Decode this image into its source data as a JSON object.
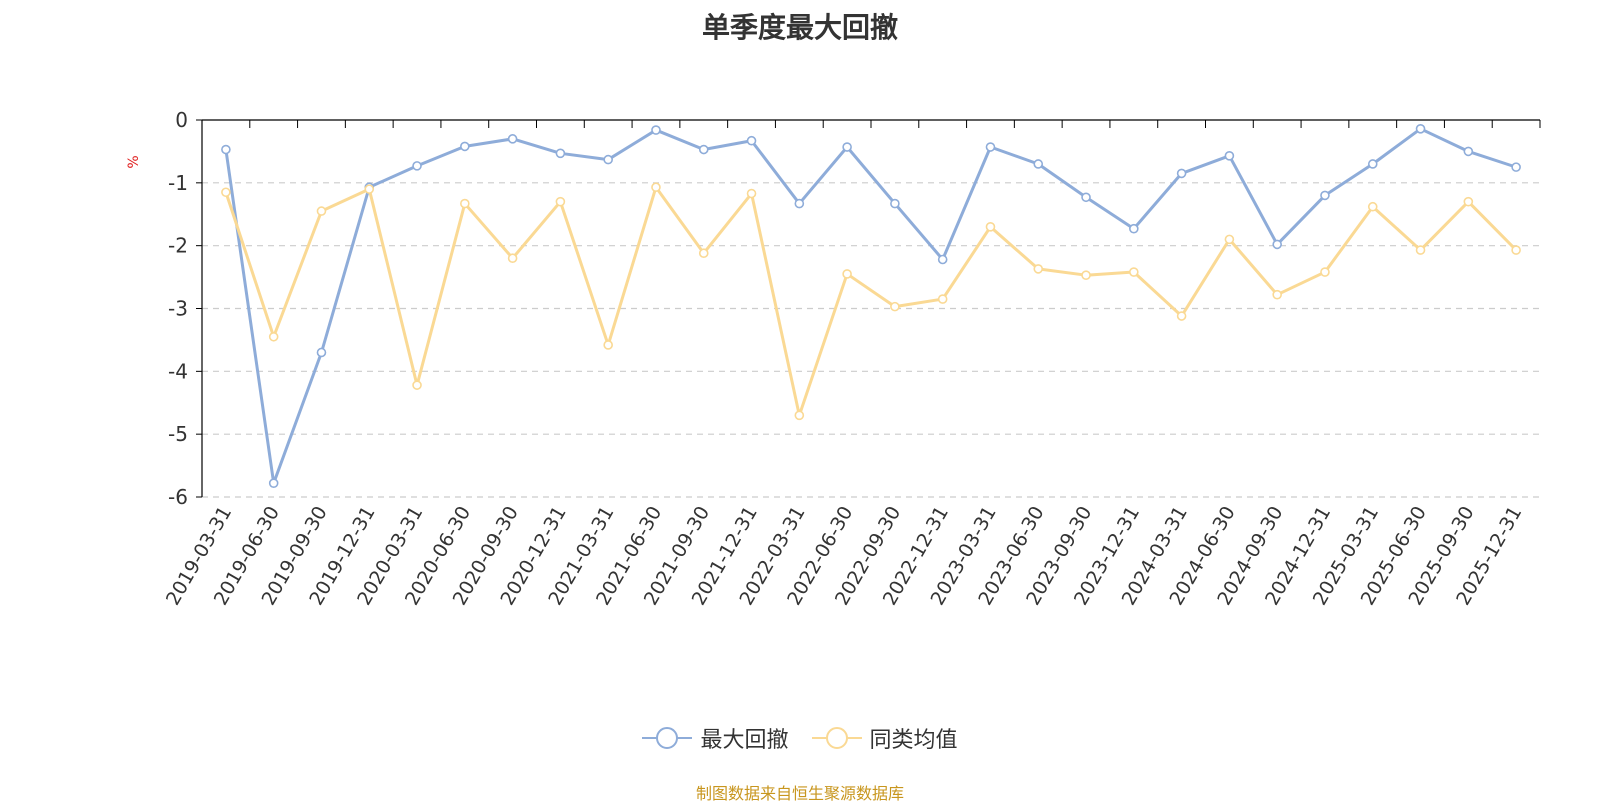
{
  "title": "单季度最大回撤",
  "source_note": "制图数据来自恒生聚源数据库",
  "colors": {
    "series_1": "#8eacd9",
    "series_2": "#fad994",
    "grid": "#cccccc",
    "axis": "#000000",
    "unit": "#e02020",
    "source": "#c8961e"
  },
  "chart_data": {
    "type": "line",
    "title": "单季度最大回撤",
    "ylabel": "%",
    "ylim": [
      -6,
      0
    ],
    "yticks": [
      0,
      -1,
      -2,
      -3,
      -4,
      -5,
      -6
    ],
    "grid": true,
    "legend_position": "bottom-center",
    "categories": [
      "2019-03-31",
      "2019-06-30",
      "2019-09-30",
      "2019-12-31",
      "2020-03-31",
      "2020-06-30",
      "2020-09-30",
      "2020-12-31",
      "2021-03-31",
      "2021-06-30",
      "2021-09-30",
      "2021-12-31",
      "2022-03-31",
      "2022-06-30",
      "2022-09-30",
      "2022-12-31",
      "2023-03-31",
      "2023-06-30",
      "2023-09-30",
      "2023-12-31",
      "2024-03-31",
      "2024-06-30",
      "2024-09-30",
      "2024-12-31",
      "2025-03-31",
      "2025-06-30",
      "2025-09-30",
      "2025-12-31"
    ],
    "series": [
      {
        "name": "最大回撤",
        "color": "#8eacd9",
        "values": [
          -0.47,
          -5.78,
          -3.7,
          -1.07,
          -0.73,
          -0.42,
          -0.3,
          -0.53,
          -0.63,
          -0.16,
          -0.47,
          -0.33,
          -1.33,
          -0.43,
          -1.33,
          -2.22,
          -0.43,
          -0.7,
          -1.23,
          -1.73,
          -0.85,
          -0.57,
          -1.98,
          -1.2,
          -0.7,
          -0.14,
          -0.5,
          -0.75
        ]
      },
      {
        "name": "同类均值",
        "color": "#fad994",
        "values": [
          -1.15,
          -3.45,
          -1.45,
          -1.1,
          -4.22,
          -1.33,
          -2.2,
          -1.3,
          -3.58,
          -1.07,
          -2.12,
          -1.17,
          -4.7,
          -2.45,
          -2.97,
          -2.85,
          -1.7,
          -2.37,
          -2.47,
          -2.42,
          -3.12,
          -1.9,
          -2.78,
          -2.42,
          -1.38,
          -2.07,
          -1.3,
          -2.07
        ]
      }
    ]
  }
}
